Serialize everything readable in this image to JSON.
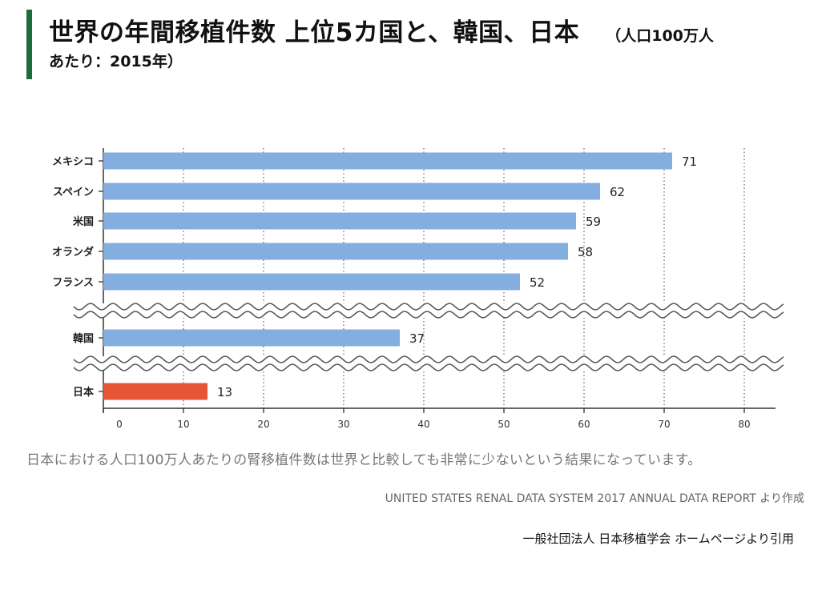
{
  "header": {
    "title": "世界の年間移植件数 上位5カ国と、韓国、日本",
    "subtitle_part1": "（人口100万人",
    "subtitle_part2": "あたり：2015年）",
    "accent_color": "#1f6b3a"
  },
  "chart_data": {
    "type": "bar",
    "orientation": "horizontal",
    "categories": [
      "メキシコ",
      "スペイン",
      "米国",
      "オランダ",
      "フランス",
      "韓国",
      "日本"
    ],
    "values": [
      71,
      62,
      59,
      58,
      52,
      37,
      13
    ],
    "bar_colors": [
      "#85aee0",
      "#85aee0",
      "#85aee0",
      "#85aee0",
      "#85aee0",
      "#85aee0",
      "#e85535"
    ],
    "xlim": [
      0,
      80
    ],
    "xticks": [
      0,
      10,
      20,
      30,
      40,
      50,
      60,
      70,
      80
    ],
    "grid": "vertical-dotted",
    "axis_breaks": "wavy breaks between フランス and 韓国, and between 韓国 and 日本"
  },
  "caption": "日本における人口100万人あたりの腎移植件数は世界と比較しても非常に少ないという結果になっています。",
  "source_note": "UNITED STATES RENAL DATA SYSTEM 2017 ANNUAL DATA REPORT より作成",
  "citation": "一般社団法人 日本移植学会 ホームページより引用"
}
